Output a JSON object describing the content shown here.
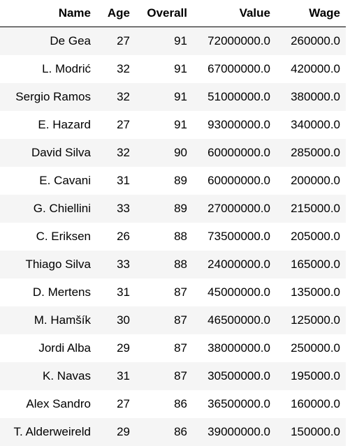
{
  "table": {
    "columns": [
      "Name",
      "Age",
      "Overall",
      "Value",
      "Wage"
    ],
    "rows": [
      [
        "De Gea",
        "27",
        "91",
        "72000000.0",
        "260000.0"
      ],
      [
        "L. Modrić",
        "32",
        "91",
        "67000000.0",
        "420000.0"
      ],
      [
        "Sergio Ramos",
        "32",
        "91",
        "51000000.0",
        "380000.0"
      ],
      [
        "E. Hazard",
        "27",
        "91",
        "93000000.0",
        "340000.0"
      ],
      [
        "David Silva",
        "32",
        "90",
        "60000000.0",
        "285000.0"
      ],
      [
        "E. Cavani",
        "31",
        "89",
        "60000000.0",
        "200000.0"
      ],
      [
        "G. Chiellini",
        "33",
        "89",
        "27000000.0",
        "215000.0"
      ],
      [
        "C. Eriksen",
        "26",
        "88",
        "73500000.0",
        "205000.0"
      ],
      [
        "Thiago Silva",
        "33",
        "88",
        "24000000.0",
        "165000.0"
      ],
      [
        "D. Mertens",
        "31",
        "87",
        "45000000.0",
        "135000.0"
      ],
      [
        "M. Hamšík",
        "30",
        "87",
        "46500000.0",
        "125000.0"
      ],
      [
        "Jordi Alba",
        "29",
        "87",
        "38000000.0",
        "250000.0"
      ],
      [
        "K. Navas",
        "31",
        "87",
        "30500000.0",
        "195000.0"
      ],
      [
        "Alex Sandro",
        "27",
        "86",
        "36500000.0",
        "160000.0"
      ],
      [
        "T. Alderweireld",
        "29",
        "86",
        "39000000.0",
        "150000.0"
      ]
    ]
  }
}
